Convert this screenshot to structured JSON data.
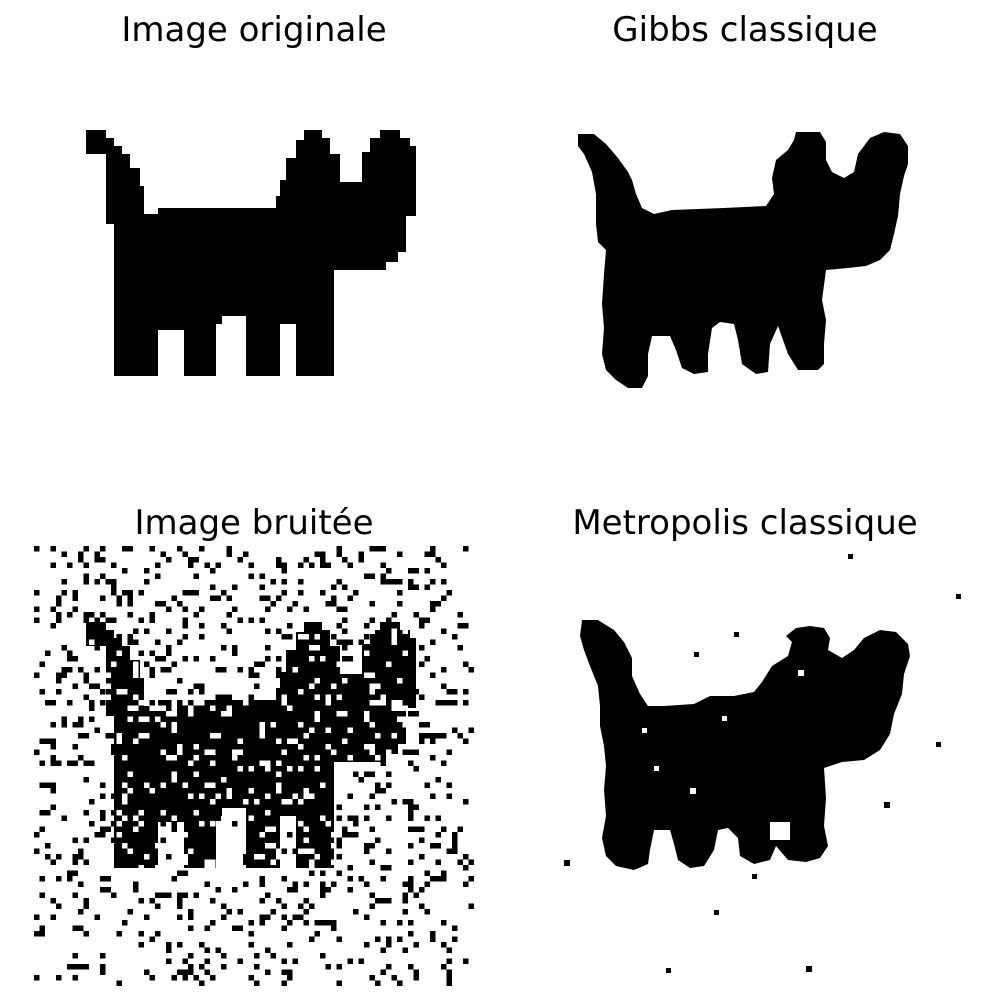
{
  "panels": [
    {
      "title": "Image originale"
    },
    {
      "title": "Gibbs classique"
    },
    {
      "title": "Image bruitée"
    },
    {
      "title": "Metropolis classique"
    }
  ],
  "colors": {
    "foreground": "#000000",
    "background": "#ffffff"
  }
}
